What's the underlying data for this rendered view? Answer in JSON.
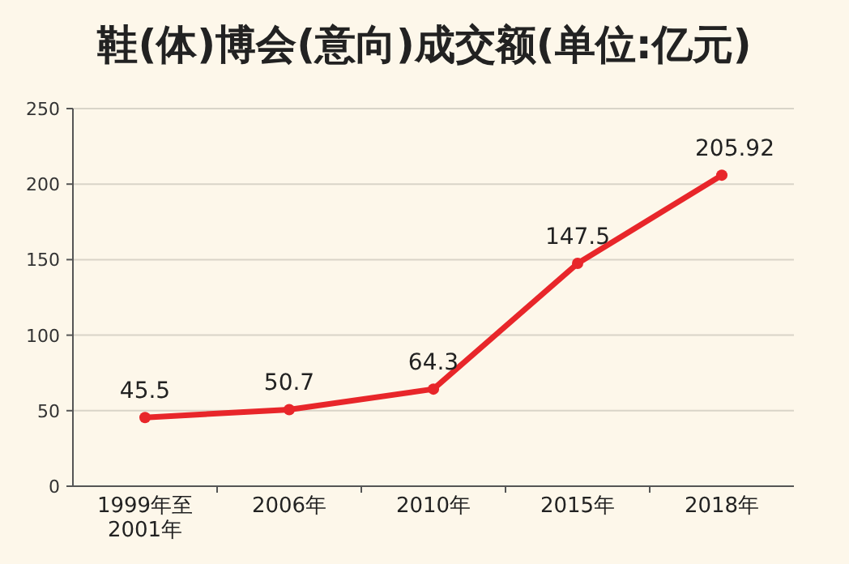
{
  "chart_data": {
    "type": "line",
    "title": "鞋(体)博会(意向)成交额(单位:亿元)",
    "categories": [
      "1999年至\n2001年",
      "2006年",
      "2010年",
      "2015年",
      "2018年"
    ],
    "series": [
      {
        "color": "#e8262a",
        "values": [
          45.5,
          50.7,
          64.3,
          147.5,
          205.92
        ]
      }
    ],
    "ylim": [
      0,
      250
    ],
    "yticks": [
      0,
      50,
      100,
      150,
      200,
      250
    ],
    "grid": "y",
    "marker": "circle",
    "line_style": "solid",
    "data_labels": true
  }
}
